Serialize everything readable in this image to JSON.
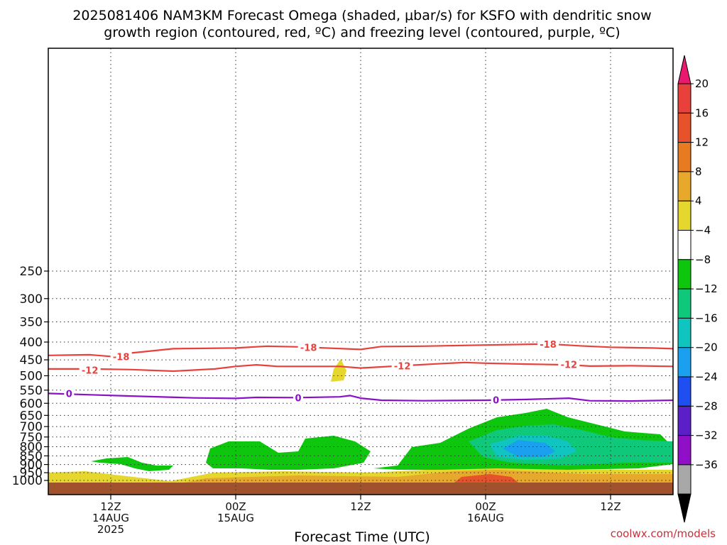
{
  "chart_data": {
    "type": "heatmap",
    "title_line1": "2025081406 NAM3KM Forecast Omega (shaded, μbar/s) for KSFO with dendritic snow",
    "title_line2": "growth region (contoured, red, ºC) and freezing level (contoured, purple, ºC)",
    "xlabel": "Forecast Time (UTC)",
    "ylabel": "",
    "y_scale": "log-pressure (inverted)",
    "y_ticks": [
      250,
      300,
      350,
      400,
      450,
      500,
      550,
      600,
      650,
      700,
      750,
      800,
      850,
      900,
      950,
      1000
    ],
    "x_ticks": [
      {
        "line1": "12Z",
        "line2": "14AUG",
        "line3": "2025",
        "hour": 12
      },
      {
        "line1": "00Z",
        "line2": "15AUG",
        "line3": "",
        "hour": 24
      },
      {
        "line1": "12Z",
        "line2": "",
        "line3": "",
        "hour": 36
      },
      {
        "line1": "00Z",
        "line2": "16AUG",
        "line3": "",
        "hour": 48
      },
      {
        "line1": "12Z",
        "line2": "",
        "line3": "",
        "hour": 60
      }
    ],
    "x_range_hours": [
      6,
      66
    ],
    "grid": true,
    "colorbar": {
      "labels": [
        "20",
        "16",
        "12",
        "8",
        "4",
        "−4",
        "−8",
        "−12",
        "−16",
        "−20",
        "−24",
        "−28",
        "−32",
        "−36"
      ],
      "colors_top_to_bottom": [
        "#e8196e",
        "#e8413c",
        "#e8522b",
        "#e77b22",
        "#e7a82b",
        "#e6d72e",
        "#ffffff",
        "#0ec60e",
        "#10c87a",
        "#10c4c0",
        "#1aa0ef",
        "#1f4ff0",
        "#5b1fc8",
        "#9010c8",
        "#a8a8a8",
        "#000000"
      ]
    },
    "contours": [
      {
        "label": "-18",
        "color": "#e8413c",
        "kind": "dendritic",
        "points": [
          [
            6,
            437
          ],
          [
            10,
            435
          ],
          [
            12,
            440
          ],
          [
            14,
            430
          ],
          [
            18,
            418
          ],
          [
            24,
            416
          ],
          [
            27,
            411
          ],
          [
            30,
            413
          ],
          [
            36,
            420
          ],
          [
            38,
            412
          ],
          [
            42,
            411
          ],
          [
            48,
            408
          ],
          [
            54,
            405
          ],
          [
            57,
            410
          ],
          [
            60,
            414
          ],
          [
            64,
            416
          ],
          [
            66,
            418
          ]
        ],
        "labels_at": [
          [
            13,
            440
          ],
          [
            31,
            414
          ],
          [
            54,
            406
          ]
        ]
      },
      {
        "label": "-12",
        "color": "#e8413c",
        "kind": "dendritic",
        "points": [
          [
            6,
            478
          ],
          [
            10,
            478
          ],
          [
            14,
            480
          ],
          [
            18,
            485
          ],
          [
            22,
            478
          ],
          [
            24,
            470
          ],
          [
            26,
            465
          ],
          [
            28,
            470
          ],
          [
            34,
            470
          ],
          [
            36,
            475
          ],
          [
            40,
            468
          ],
          [
            44,
            461
          ],
          [
            46,
            458
          ],
          [
            48,
            460
          ],
          [
            52,
            463
          ],
          [
            56,
            465
          ],
          [
            58,
            469
          ],
          [
            62,
            468
          ],
          [
            66,
            470
          ]
        ],
        "labels_at": [
          [
            10,
            482
          ],
          [
            40,
            468
          ],
          [
            56,
            464
          ]
        ]
      },
      {
        "label": "0",
        "color": "#8a10c8",
        "kind": "freezing",
        "points": [
          [
            6,
            562
          ],
          [
            10,
            567
          ],
          [
            14,
            572
          ],
          [
            20,
            579
          ],
          [
            24,
            581
          ],
          [
            26,
            577
          ],
          [
            30,
            578
          ],
          [
            34,
            575
          ],
          [
            35,
            570
          ],
          [
            36,
            580
          ],
          [
            38,
            588
          ],
          [
            42,
            590
          ],
          [
            48,
            588
          ],
          [
            52,
            585
          ],
          [
            56,
            580
          ],
          [
            58,
            590
          ],
          [
            62,
            591
          ],
          [
            66,
            588
          ]
        ],
        "labels_at": [
          [
            8,
            563
          ],
          [
            30,
            579
          ],
          [
            49,
            587
          ]
        ]
      }
    ]
  },
  "credit": "coolwx.com/models"
}
